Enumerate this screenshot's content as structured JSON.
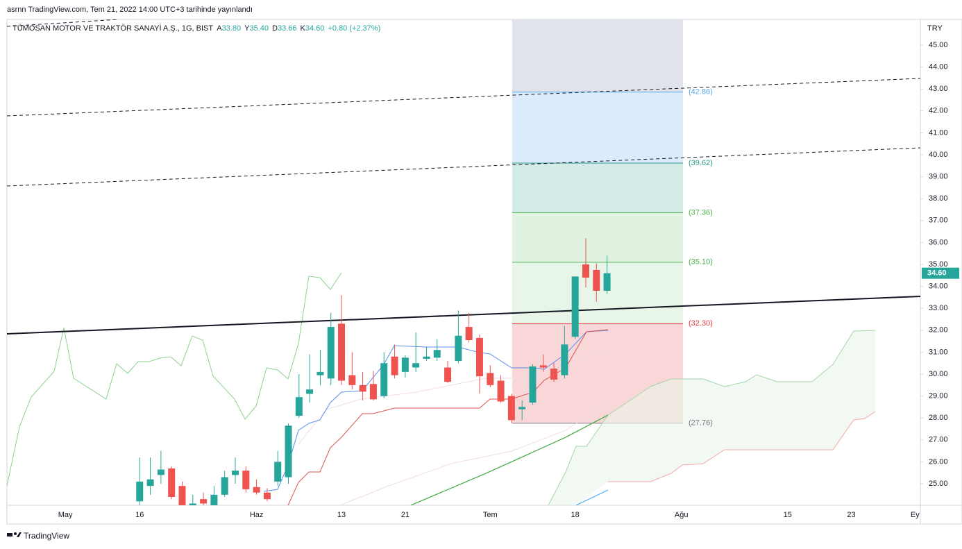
{
  "chart_data": {
    "type": "candlestick",
    "published": "asrnn TradingView.com, Tem 21, 2022 14:00 UTC+3 tarihinde yayınlandı",
    "title": "TÜMOSAN MOTOR VE TRAKTÖR SANAYİ A.Ş., 1G, BIST",
    "legend": {
      "labels": [
        "A",
        "Y",
        "D",
        "K"
      ],
      "values": [
        33.8,
        35.4,
        33.66,
        34.6
      ],
      "value_labels": [
        "33.80",
        "35.40",
        "33.66",
        "34.60"
      ],
      "change": "+0.80 (+2.37%)"
    },
    "currency": "TRY",
    "last_price": {
      "value": 34.6,
      "label": "34.60"
    },
    "up_color": "#26a69a",
    "down_color": "#ef5350",
    "categories": [
      null,
      null,
      null,
      null,
      null,
      "May",
      null,
      null,
      null,
      null,
      null,
      null,
      "16",
      null,
      null,
      null,
      null,
      null,
      null,
      null,
      null,
      null,
      null,
      "Haz",
      null,
      null,
      null,
      null,
      null,
      null,
      null,
      "13",
      null,
      null,
      null,
      null,
      null,
      "21",
      null,
      null,
      null,
      null,
      null,
      null,
      null,
      "Tem",
      null,
      null,
      null,
      null,
      null,
      null,
      null,
      "18",
      null,
      null,
      null,
      null,
      null,
      null,
      null,
      null,
      null,
      "Ağu",
      null,
      null,
      null,
      null,
      null,
      null,
      null,
      null,
      null,
      "15",
      null,
      null,
      null,
      null,
      null,
      "23",
      null,
      null,
      null,
      null,
      null,
      "Ey"
    ],
    "open": [
      null,
      null,
      null,
      null,
      null,
      null,
      null,
      null,
      null,
      null,
      null,
      null,
      24.2,
      24.9,
      25.4,
      25.7,
      24.9,
      24.0,
      24.3,
      24.0,
      24.5,
      25.4,
      25.6,
      24.85,
      24.6,
      25.1,
      25.3,
      28.1,
      29.1,
      29.95,
      29.8,
      32.3,
      29.95,
      29.5,
      29.55,
      29.0,
      30.8,
      30.1,
      30.3,
      30.7,
      30.75,
      30.3,
      30.6,
      32.15,
      31.65,
      30.05,
      29.7,
      29.0,
      28.4,
      28.7,
      30.4,
      30.25,
      29.95,
      31.7,
      35.0,
      34.75,
      33.8,
      null,
      null,
      null,
      null,
      null,
      null,
      null,
      null,
      null,
      null,
      null,
      null,
      null,
      null,
      null,
      null,
      null,
      null,
      null,
      null,
      null,
      null,
      null,
      null,
      null,
      null,
      null,
      null,
      null
    ],
    "high": [
      null,
      null,
      null,
      null,
      null,
      null,
      null,
      null,
      null,
      null,
      null,
      null,
      26.2,
      26.2,
      26.5,
      25.8,
      25.1,
      24.5,
      24.6,
      24.9,
      25.6,
      26.2,
      25.8,
      25.2,
      24.8,
      26.5,
      27.75,
      30.0,
      30.9,
      31.1,
      32.8,
      33.6,
      31.0,
      30.1,
      30.15,
      31.0,
      31.35,
      30.85,
      31.9,
      31.25,
      31.6,
      30.6,
      32.9,
      32.8,
      31.8,
      30.4,
      29.95,
      29.1,
      28.8,
      30.45,
      30.9,
      30.5,
      32.2,
      34.45,
      36.2,
      35.05,
      35.4,
      null,
      null,
      null,
      null,
      null,
      null,
      null,
      null,
      null,
      null,
      null,
      null,
      null,
      null,
      null,
      null,
      null,
      null,
      null,
      null,
      null,
      null,
      null,
      null,
      null,
      null,
      null,
      null,
      null
    ],
    "low": [
      null,
      null,
      null,
      null,
      null,
      null,
      null,
      null,
      null,
      null,
      null,
      null,
      24.0,
      24.5,
      25.0,
      24.3,
      23.8,
      23.8,
      23.9,
      23.8,
      24.4,
      25.0,
      24.6,
      24.5,
      24.2,
      24.9,
      25.0,
      28.0,
      28.7,
      29.5,
      29.5,
      29.5,
      29.3,
      28.8,
      28.8,
      28.9,
      29.8,
      29.85,
      30.1,
      30.6,
      30.6,
      29.6,
      30.5,
      31.45,
      29.1,
      29.4,
      28.7,
      27.76,
      27.9,
      28.6,
      30.1,
      29.65,
      29.8,
      31.6,
      33.95,
      33.3,
      33.66,
      null,
      null,
      null,
      null,
      null,
      null,
      null,
      null,
      null,
      null,
      null,
      null,
      null,
      null,
      null,
      null,
      null,
      null,
      null,
      null,
      null,
      null,
      null,
      null,
      null,
      null,
      null,
      null,
      null
    ],
    "close": [
      null,
      null,
      null,
      null,
      null,
      null,
      null,
      null,
      null,
      null,
      null,
      null,
      25.1,
      25.2,
      25.65,
      24.4,
      24.0,
      24.1,
      24.1,
      24.5,
      25.3,
      25.6,
      24.75,
      24.6,
      24.3,
      26.0,
      27.65,
      28.95,
      29.3,
      30.1,
      32.15,
      29.7,
      29.5,
      29.2,
      28.85,
      30.5,
      29.95,
      30.75,
      30.5,
      30.8,
      31.1,
      29.65,
      31.75,
      31.55,
      29.9,
      29.5,
      28.75,
      27.9,
      28.5,
      30.35,
      30.3,
      29.75,
      31.35,
      34.45,
      34.4,
      33.8,
      34.6,
      null,
      null,
      null,
      null,
      null,
      null,
      null,
      null,
      null,
      null,
      null,
      null,
      null,
      null,
      null,
      null,
      null,
      null,
      null,
      null,
      null,
      null,
      null,
      null,
      null,
      null,
      null,
      null,
      null
    ],
    "ylim": [
      24.02,
      46.17
    ],
    "yticks": [
      {
        "value": 25,
        "label": "25.00"
      },
      {
        "value": 26,
        "label": "26.00"
      },
      {
        "value": 27,
        "label": "27.00"
      },
      {
        "value": 28,
        "label": "28.00"
      },
      {
        "value": 29,
        "label": "29.00"
      },
      {
        "value": 30,
        "label": "30.00"
      },
      {
        "value": 31,
        "label": "31.00"
      },
      {
        "value": 32,
        "label": "32.00"
      },
      {
        "value": 33,
        "label": "33.00"
      },
      {
        "value": 34,
        "label": "34.00"
      },
      {
        "value": 35,
        "label": "35.00"
      },
      {
        "value": 36,
        "label": "36.00"
      },
      {
        "value": 37,
        "label": "37.00"
      },
      {
        "value": 38,
        "label": "38.00"
      },
      {
        "value": 39,
        "label": "39.00"
      },
      {
        "value": 40,
        "label": "40.00"
      },
      {
        "value": 41,
        "label": "41.00"
      },
      {
        "value": 42,
        "label": "42.00"
      },
      {
        "value": 43,
        "label": "43.00"
      },
      {
        "value": 44,
        "label": "44.00"
      },
      {
        "value": 45,
        "label": "45.00"
      }
    ],
    "levels": [
      {
        "value": 42.86,
        "label": "(42.86)",
        "color": "#5aa9e6",
        "fill": "#dcebfb"
      },
      {
        "value": 39.62,
        "label": "(39.62)",
        "color": "#2a9d8f",
        "fill": "#d3ebe6"
      },
      {
        "value": 37.36,
        "label": "(37.36)",
        "color": "#4caf50",
        "fill": "#e1f2e1"
      },
      {
        "value": 35.1,
        "label": "(35.10)",
        "color": "#4caf50",
        "fill": "#e8f5e9"
      },
      {
        "value": 32.3,
        "label": "(32.30)",
        "color": "#e53946",
        "fill": "#f9d6d8"
      },
      {
        "value": 27.76,
        "label": "(27.76)",
        "color": "#787b86",
        "fill": null
      }
    ],
    "brand": "TradingView"
  }
}
